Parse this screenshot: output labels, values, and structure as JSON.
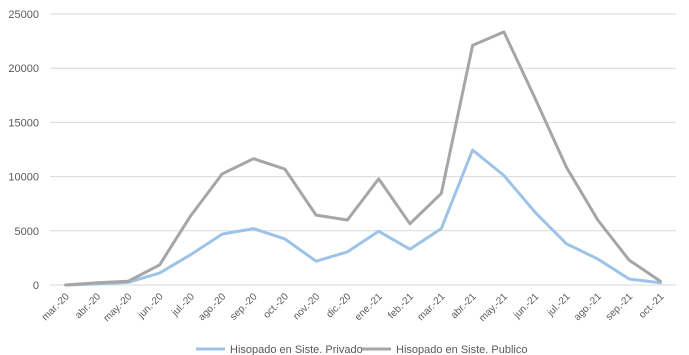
{
  "chart_data": {
    "type": "line",
    "title": "",
    "xlabel": "",
    "ylabel": "",
    "ylim": [
      0,
      25000
    ],
    "yticks": [
      0,
      5000,
      10000,
      15000,
      20000,
      25000
    ],
    "grid": true,
    "legend_position": "bottom",
    "categories": [
      "mar.-20",
      "abr.-20",
      "may.-20",
      "jun.-20",
      "jul.-20",
      "ago.-20",
      "sep.-20",
      "oct.-20",
      "nov.-20",
      "dic.-20",
      "ene.-21",
      "feb.-21",
      "mar.-21",
      "abr.-21",
      "may.-21",
      "jun.-21",
      "jul.-21",
      "ago.-21",
      "sep.-21",
      "oct.-21"
    ],
    "series": [
      {
        "name": "Hisopado en Siste. Privado",
        "color": "#9dc3e6",
        "values": [
          0,
          100,
          250,
          1100,
          2800,
          4700,
          5200,
          4250,
          2200,
          3050,
          4950,
          3300,
          5200,
          12450,
          10100,
          6700,
          3800,
          2400,
          550,
          200
        ]
      },
      {
        "name": "Hisopado en Siste. Publico",
        "color": "#a6a6a6",
        "values": [
          0,
          200,
          350,
          1850,
          6400,
          10250,
          11650,
          10700,
          6450,
          6000,
          9800,
          5650,
          8450,
          22100,
          23350,
          17200,
          10850,
          6000,
          2300,
          350
        ]
      }
    ]
  }
}
